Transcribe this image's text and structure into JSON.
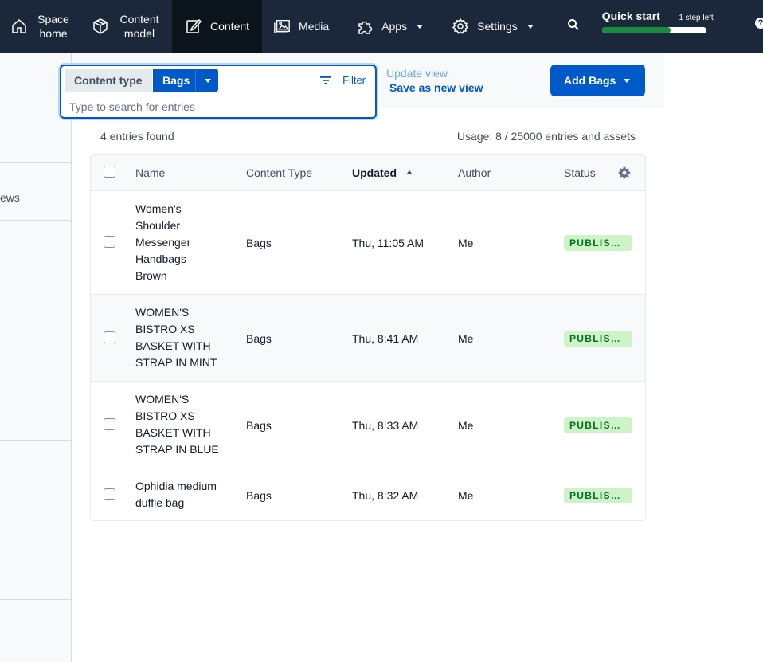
{
  "nav": {
    "space_home": "Space home",
    "content_model": "Content model",
    "content": "Content",
    "media": "Media",
    "apps": "Apps",
    "settings": "Settings",
    "quick_start_title": "Quick start",
    "quick_start_steps": "1 step left",
    "quick_start_progress": 0.66,
    "help": "?"
  },
  "sidebar": {
    "partial_text": "ews"
  },
  "toolbar": {
    "content_type_label": "Content type",
    "content_type_value": "Bags",
    "filter_label": "Filter",
    "search_placeholder": "Type to search for entries",
    "update_view": "Update view",
    "save_view": "Save as new view",
    "add_button": "Add Bags"
  },
  "meta": {
    "entries_found": "4 entries found",
    "usage": "Usage: 8 / 25000 entries and assets"
  },
  "table": {
    "headers": {
      "name": "Name",
      "content_type": "Content Type",
      "updated": "Updated",
      "author": "Author",
      "status": "Status"
    },
    "rows": [
      {
        "name": "Women's Shoulder Messenger Handbags- Brown",
        "content_type": "Bags",
        "updated": "Thu, 11:05 AM",
        "author": "Me",
        "status": "PUBLISHED"
      },
      {
        "name": "WOMEN'S BISTRO XS BASKET WITH STRAP IN MINT",
        "content_type": "Bags",
        "updated": "Thu, 8:41 AM",
        "author": "Me",
        "status": "PUBLISHED"
      },
      {
        "name": "WOMEN'S BISTRO XS BASKET WITH STRAP IN BLUE",
        "content_type": "Bags",
        "updated": "Thu, 8:33 AM",
        "author": "Me",
        "status": "PUBLISHED"
      },
      {
        "name": "Ophidia medium duffle bag",
        "content_type": "Bags",
        "updated": "Thu, 8:32 AM",
        "author": "Me",
        "status": "PUBLISHED"
      }
    ]
  },
  "colors": {
    "nav_bg": "#1b273a",
    "primary": "#0059c8",
    "published_bg": "#cdf3c6",
    "published_text": "#006d23"
  }
}
